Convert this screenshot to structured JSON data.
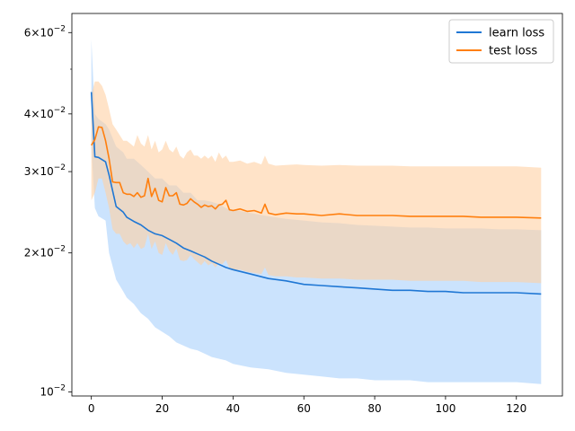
{
  "chart_data": {
    "type": "line",
    "title": "",
    "xlabel": "",
    "ylabel": "",
    "y_scale": "log",
    "xlim": [
      -5.5,
      133
    ],
    "ylim": [
      0.0098,
      0.066
    ],
    "grid": false,
    "legend_position": "top-right",
    "x_ticks": [
      0,
      20,
      40,
      60,
      80,
      100,
      120
    ],
    "x_tick_labels": [
      "0",
      "20",
      "40",
      "60",
      "80",
      "100",
      "120"
    ],
    "y_major_ticks": [
      0.02,
      0.03,
      0.04,
      0.06,
      0.01
    ],
    "y_major_tick_mantissas": [
      "2",
      "3",
      "4",
      "6",
      ""
    ],
    "y_major_tick_exponents": [
      "−2",
      "−2",
      "−2",
      "−2",
      "−2"
    ],
    "y_major_tick_bases": [
      "×10",
      "×10",
      "×10",
      "×10",
      "10"
    ],
    "y_minor_ticks": [
      0.05
    ],
    "series": [
      {
        "name": "learn loss",
        "color": "#1f77d4",
        "band_color": "#a8d1fb",
        "band_opacity": 0.6,
        "x": [
          0,
          1,
          2,
          4,
          5,
          7,
          9,
          10,
          12,
          14,
          16,
          18,
          20,
          22,
          24,
          26,
          28,
          30,
          32,
          34,
          36,
          38,
          40,
          45,
          50,
          55,
          60,
          65,
          70,
          75,
          80,
          85,
          90,
          95,
          100,
          105,
          110,
          115,
          120,
          127
        ],
        "values": [
          0.0446,
          0.0323,
          0.0322,
          0.0315,
          0.0295,
          0.0252,
          0.0245,
          0.0239,
          0.0234,
          0.023,
          0.0224,
          0.022,
          0.0218,
          0.0214,
          0.021,
          0.0205,
          0.0202,
          0.0199,
          0.0196,
          0.0192,
          0.0189,
          0.0186,
          0.0184,
          0.018,
          0.0176,
          0.0174,
          0.0171,
          0.017,
          0.0169,
          0.0168,
          0.0167,
          0.0166,
          0.0166,
          0.0165,
          0.0165,
          0.0164,
          0.0164,
          0.0164,
          0.0164,
          0.0163
        ],
        "upper": [
          0.058,
          0.04,
          0.039,
          0.038,
          0.037,
          0.034,
          0.033,
          0.032,
          0.032,
          0.031,
          0.03,
          0.029,
          0.029,
          0.028,
          0.028,
          0.027,
          0.027,
          0.026,
          0.026,
          0.0258,
          0.0255,
          0.025,
          0.0248,
          0.0244,
          0.024,
          0.0237,
          0.0235,
          0.0233,
          0.0232,
          0.023,
          0.0229,
          0.0228,
          0.0227,
          0.0227,
          0.0226,
          0.0226,
          0.0226,
          0.0225,
          0.0225,
          0.0224
        ],
        "lower": [
          0.034,
          0.025,
          0.024,
          0.0235,
          0.02,
          0.0175,
          0.0165,
          0.016,
          0.0155,
          0.0148,
          0.0144,
          0.0138,
          0.0135,
          0.0132,
          0.0128,
          0.0126,
          0.0124,
          0.0123,
          0.0121,
          0.0119,
          0.0118,
          0.0117,
          0.0115,
          0.0113,
          0.0112,
          0.011,
          0.0109,
          0.0108,
          0.0107,
          0.0107,
          0.0106,
          0.0106,
          0.0106,
          0.0105,
          0.0105,
          0.0105,
          0.0105,
          0.0105,
          0.0105,
          0.0104
        ]
      },
      {
        "name": "test loss",
        "color": "#ff7f0e",
        "band_color": "#ffd0a3",
        "band_opacity": 0.6,
        "x": [
          0,
          1,
          2,
          3,
          4,
          5,
          6,
          7,
          8,
          9,
          10,
          11,
          12,
          13,
          14,
          15,
          16,
          17,
          18,
          19,
          20,
          21,
          22,
          23,
          24,
          25,
          26,
          27,
          28,
          29,
          30,
          31,
          32,
          33,
          34,
          35,
          36,
          37,
          38,
          39,
          40,
          42,
          44,
          46,
          48,
          49,
          50,
          52,
          55,
          58,
          60,
          65,
          70,
          75,
          80,
          85,
          90,
          95,
          100,
          105,
          110,
          115,
          120,
          127
        ],
        "values": [
          0.0342,
          0.0352,
          0.0375,
          0.0374,
          0.035,
          0.032,
          0.0285,
          0.0284,
          0.0284,
          0.027,
          0.0268,
          0.0268,
          0.0265,
          0.027,
          0.0264,
          0.0266,
          0.029,
          0.0265,
          0.0276,
          0.026,
          0.0258,
          0.0277,
          0.0266,
          0.0266,
          0.027,
          0.0255,
          0.0254,
          0.0256,
          0.0262,
          0.0258,
          0.0255,
          0.0251,
          0.0254,
          0.0252,
          0.0253,
          0.0249,
          0.0254,
          0.0255,
          0.026,
          0.0248,
          0.0247,
          0.0249,
          0.0246,
          0.0247,
          0.0244,
          0.0255,
          0.0244,
          0.0242,
          0.0244,
          0.0243,
          0.0243,
          0.0241,
          0.0243,
          0.0241,
          0.0241,
          0.0241,
          0.024,
          0.024,
          0.024,
          0.024,
          0.0239,
          0.0239,
          0.0239,
          0.0238
        ],
        "upper": [
          0.044,
          0.047,
          0.047,
          0.046,
          0.044,
          0.041,
          0.038,
          0.037,
          0.036,
          0.035,
          0.035,
          0.0345,
          0.034,
          0.036,
          0.0345,
          0.034,
          0.036,
          0.0335,
          0.035,
          0.033,
          0.0335,
          0.035,
          0.0335,
          0.033,
          0.034,
          0.0325,
          0.032,
          0.033,
          0.0335,
          0.0325,
          0.0325,
          0.032,
          0.0325,
          0.032,
          0.0325,
          0.0315,
          0.033,
          0.032,
          0.0325,
          0.0315,
          0.0315,
          0.0317,
          0.0312,
          0.0315,
          0.0311,
          0.0325,
          0.0312,
          0.0309,
          0.031,
          0.0311,
          0.031,
          0.0309,
          0.031,
          0.0309,
          0.0309,
          0.0309,
          0.0308,
          0.0308,
          0.0308,
          0.0308,
          0.0308,
          0.0308,
          0.0308,
          0.0306
        ],
        "lower": [
          0.026,
          0.027,
          0.029,
          0.029,
          0.027,
          0.025,
          0.0225,
          0.022,
          0.022,
          0.0212,
          0.0208,
          0.021,
          0.0205,
          0.021,
          0.0204,
          0.0206,
          0.022,
          0.0204,
          0.0212,
          0.02,
          0.0198,
          0.021,
          0.0202,
          0.0198,
          0.0205,
          0.0193,
          0.0192,
          0.0193,
          0.0198,
          0.0194,
          0.0191,
          0.0188,
          0.0192,
          0.0188,
          0.019,
          0.0186,
          0.019,
          0.0189,
          0.0193,
          0.0185,
          0.0183,
          0.0184,
          0.0182,
          0.0181,
          0.018,
          0.0186,
          0.0179,
          0.0178,
          0.0178,
          0.0177,
          0.0177,
          0.0176,
          0.0176,
          0.0175,
          0.0175,
          0.0175,
          0.0174,
          0.0174,
          0.0174,
          0.0174,
          0.0173,
          0.0173,
          0.0173,
          0.0172
        ]
      }
    ]
  }
}
